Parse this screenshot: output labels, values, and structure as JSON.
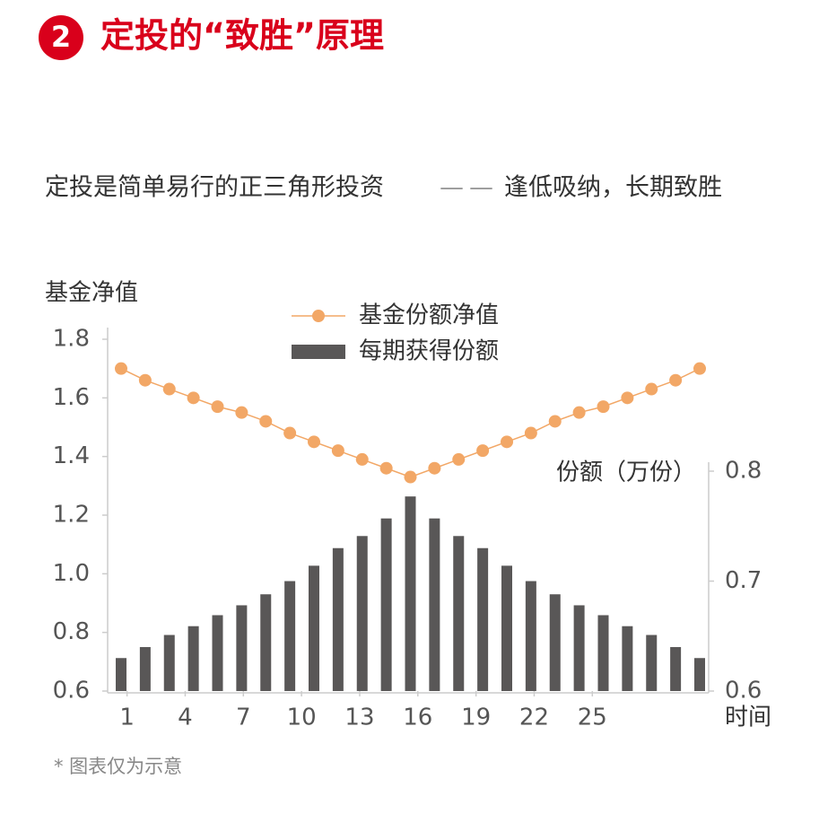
{
  "header": {
    "badge": "2",
    "title": "定投的“致胜”原理"
  },
  "subtitle": {
    "left": "定投是简单易行的正三角形投资",
    "dash": "——",
    "right": "逢低吸纳，长期致胜"
  },
  "footnote": "* 图表仅为示意",
  "chart_data": {
    "type": "bar-line",
    "y_label": "基金净值",
    "y2_label": "份额（万份）",
    "x_label": "时间",
    "categories": [
      null,
      null,
      null,
      null,
      null,
      null,
      null,
      null,
      null,
      null,
      null,
      null,
      null,
      null,
      null,
      null,
      null,
      null,
      null,
      null,
      null,
      null,
      null,
      null,
      null
    ],
    "series": [
      {
        "name": "基金份额净值",
        "type": "line",
        "color": "#f2a766",
        "values": [
          1.7,
          1.66,
          1.63,
          1.6,
          1.57,
          1.55,
          1.52,
          1.48,
          1.45,
          1.42,
          1.39,
          1.36,
          1.33,
          1.36,
          1.39,
          1.42,
          1.45,
          1.48,
          1.52,
          1.55,
          1.57,
          1.6,
          1.63,
          1.66,
          1.7
        ]
      },
      {
        "name": "每期获得份额",
        "type": "bar",
        "color": "#595757",
        "axis": "y2",
        "values": [
          0.63,
          0.64,
          0.651,
          0.659,
          0.669,
          0.678,
          0.688,
          0.7,
          0.714,
          0.73,
          0.741,
          0.757,
          0.777,
          0.757,
          0.741,
          0.73,
          0.714,
          0.7,
          0.688,
          0.678,
          0.669,
          0.659,
          0.651,
          0.64,
          0.63
        ]
      }
    ],
    "xlim": [
      0,
      31
    ],
    "xticks": [
      1,
      4,
      7,
      10,
      13,
      16,
      19,
      22,
      25
    ],
    "ylim": [
      0.6,
      1.8
    ],
    "yticks": [
      0.6,
      0.8,
      {
        "value": 1,
        "label": "1.0"
      },
      1.2,
      1.4,
      1.6,
      1.8
    ],
    "y2lim": [
      0.6,
      0.8
    ],
    "y2ticks": [
      0.6,
      0.7,
      0.8
    ]
  }
}
